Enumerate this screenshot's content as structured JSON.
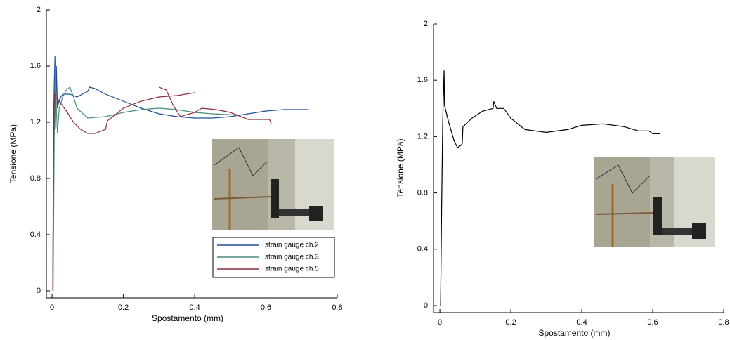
{
  "chart_data": [
    {
      "type": "line",
      "xlabel": "Spostamento (mm)",
      "ylabel": "Tensione (MPa)",
      "xlim": [
        -0.016,
        0.8
      ],
      "ylim": [
        -0.05,
        2
      ],
      "xticks": [
        0,
        0.2,
        0.4,
        0.6,
        0.8
      ],
      "yticks": [
        0,
        0.4,
        0.8,
        1.2,
        1.6,
        2
      ],
      "legend": "lower right",
      "series": [
        {
          "name": "strain gauge ch.2",
          "color": "#1f4e9a",
          "x": [
            0.002,
            0.004,
            0.006,
            0.008,
            0.01,
            0.012,
            0.015,
            0.02,
            0.03,
            0.05,
            0.07,
            0.1,
            0.105,
            0.12,
            0.15,
            0.2,
            0.25,
            0.3,
            0.35,
            0.4,
            0.45,
            0.5,
            0.55,
            0.6,
            0.65,
            0.72
          ],
          "values": [
            0,
            1.2,
            1.48,
            1.67,
            1.15,
            1.6,
            1.3,
            1.36,
            1.4,
            1.4,
            1.38,
            1.42,
            1.45,
            1.44,
            1.4,
            1.35,
            1.3,
            1.26,
            1.24,
            1.23,
            1.23,
            1.24,
            1.26,
            1.28,
            1.29,
            1.29
          ]
        },
        {
          "name": "strain gauge ch.3",
          "color": "#4a8a80",
          "x": [
            0.003,
            0.006,
            0.009,
            0.012,
            0.015,
            0.02,
            0.03,
            0.04,
            0.05,
            0.06,
            0.07,
            0.1,
            0.15,
            0.2,
            0.25,
            0.3,
            0.35,
            0.4,
            0.45,
            0.53
          ],
          "values": [
            0,
            1.1,
            1.6,
            1.3,
            1.12,
            1.3,
            1.38,
            1.43,
            1.45,
            1.38,
            1.3,
            1.23,
            1.24,
            1.27,
            1.29,
            1.3,
            1.29,
            1.27,
            1.26,
            1.25
          ]
        },
        {
          "name": "strain gauge ch.5",
          "color": "#8b2e3a",
          "x": [
            0.002,
            0.004,
            0.006,
            0.01,
            0.02,
            0.04,
            0.06,
            0.08,
            0.1,
            0.12,
            0.15,
            0.155,
            0.2,
            0.25,
            0.3,
            0.35,
            0.4,
            null,
            0.3,
            0.32,
            0.34,
            0.36,
            0.4,
            0.42,
            0.46,
            0.5,
            0.55,
            0.61,
            0.615
          ],
          "values": [
            0,
            0.9,
            1.4,
            1.38,
            1.35,
            1.28,
            1.2,
            1.15,
            1.12,
            1.12,
            1.15,
            1.21,
            1.3,
            1.35,
            1.38,
            1.39,
            1.41,
            null,
            1.45,
            1.43,
            1.32,
            1.24,
            1.27,
            1.3,
            1.29,
            1.27,
            1.22,
            1.22,
            1.19
          ]
        }
      ]
    },
    {
      "type": "line",
      "xlabel": "Spostamento (mm)",
      "ylabel": "Tensione (MPa)",
      "xlim": [
        -0.018,
        0.8
      ],
      "ylim": [
        -0.05,
        2
      ],
      "xticks": [
        0,
        0.2,
        0.4,
        0.6,
        0.8
      ],
      "yticks": [
        0,
        0.4,
        0.8,
        1.2,
        1.6,
        2
      ],
      "series": [
        {
          "color": "#000000",
          "x": [
            0.002,
            0.005,
            0.008,
            0.01,
            0.012,
            0.013,
            0.015,
            0.025,
            0.04,
            0.05,
            0.06,
            0.063,
            0.065,
            0.09,
            0.12,
            0.15,
            0.152,
            0.16,
            0.18,
            0.2,
            0.24,
            0.3,
            0.36,
            0.4,
            0.46,
            0.52,
            0.56,
            0.59,
            0.6,
            0.62
          ],
          "values": [
            0,
            0.7,
            1.3,
            1.5,
            1.67,
            1.42,
            1.4,
            1.3,
            1.17,
            1.12,
            1.14,
            1.15,
            1.27,
            1.33,
            1.38,
            1.4,
            1.45,
            1.4,
            1.4,
            1.33,
            1.25,
            1.23,
            1.25,
            1.28,
            1.29,
            1.27,
            1.24,
            1.24,
            1.22,
            1.22
          ]
        }
      ]
    }
  ]
}
